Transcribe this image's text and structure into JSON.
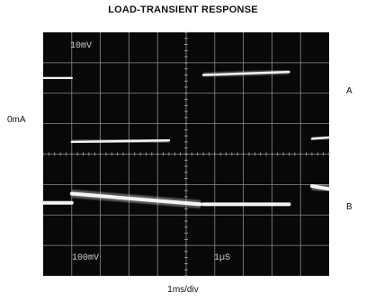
{
  "chart_data": {
    "type": "line",
    "title": "LOAD-TRANSIENT RESPONSE",
    "xlabel": "1ms/div",
    "ylabel": "",
    "grid": true,
    "divisions": {
      "x": 10,
      "y": 8
    },
    "xlim": [
      0,
      10
    ],
    "ylim": [
      0,
      8
    ],
    "channel_labels": [
      "A",
      "B"
    ],
    "level_label": "0mA",
    "scale_labels": {
      "top_left": "10mV",
      "bottom_left": "100mV",
      "bottom_center": "1µS"
    },
    "series": [
      {
        "name": "A",
        "segments": [
          {
            "x": [
              0.0,
              1.0
            ],
            "y": [
              6.5,
              6.5
            ]
          },
          {
            "x": [
              1.0,
              4.4
            ],
            "y": [
              4.4,
              4.45
            ]
          },
          {
            "x": [
              5.6,
              8.6
            ],
            "y": [
              6.6,
              6.7
            ]
          },
          {
            "x": [
              9.4,
              10.0
            ],
            "y": [
              4.5,
              4.55
            ]
          }
        ]
      },
      {
        "name": "B",
        "segments": [
          {
            "x": [
              0.0,
              1.0
            ],
            "y": [
              2.4,
              2.4
            ]
          },
          {
            "x": [
              1.0,
              5.5
            ],
            "y": [
              2.7,
              2.35
            ]
          },
          {
            "x": [
              5.6,
              8.6
            ],
            "y": [
              2.35,
              2.35
            ]
          },
          {
            "x": [
              9.4,
              10.0
            ],
            "y": [
              2.95,
              2.85
            ]
          }
        ]
      }
    ]
  }
}
